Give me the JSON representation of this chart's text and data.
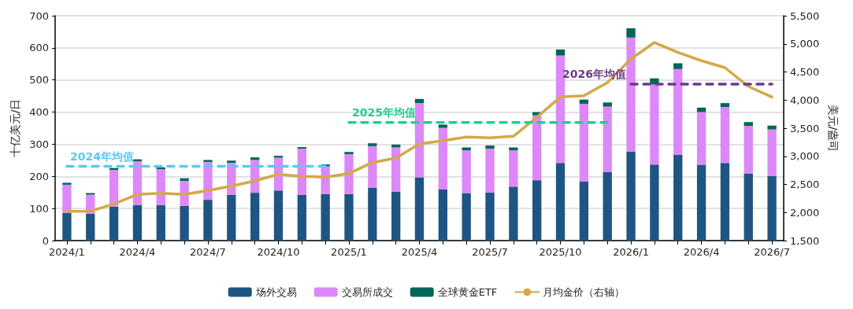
{
  "chart_data": {
    "type": "bar",
    "stacked": true,
    "ylabel": "十亿美元/日",
    "y2label": "美元/盎司",
    "categories": [
      "2024/1",
      null,
      null,
      "2024/4",
      null,
      null,
      "2024/7",
      null,
      null,
      "2024/10",
      null,
      null,
      "2025/1",
      null,
      null,
      "2025/4",
      null,
      null,
      "2025/7",
      null,
      null,
      "2025/10",
      null,
      null,
      "2026/1",
      null,
      null,
      "2026/4",
      null,
      null,
      "2026/7"
    ],
    "ylim": [
      0,
      700
    ],
    "yticks": [
      0,
      100,
      200,
      300,
      400,
      500,
      600,
      700
    ],
    "y2lim": [
      1500,
      5500
    ],
    "y2ticks": [
      {
        "value": 1500,
        "label": "1,500"
      },
      {
        "value": 2000,
        "label": "2,000"
      },
      {
        "value": 2500,
        "label": "2,500"
      },
      {
        "value": 3000,
        "label": "3,000"
      },
      {
        "value": 3500,
        "label": "3,500"
      },
      {
        "value": 4000,
        "label": "4,000"
      },
      {
        "value": 4500,
        "label": "4,500"
      },
      {
        "value": 5000,
        "label": "5,000"
      },
      {
        "value": 5500,
        "label": "5,500"
      }
    ],
    "grid": "y",
    "legend": "bottom",
    "series": [
      {
        "name": "场外交易",
        "color": "#1f5582",
        "values": [
          86,
          84,
          106,
          111,
          111,
          108,
          127,
          143,
          149,
          156,
          143,
          145,
          145,
          165,
          152,
          197,
          159,
          148,
          150,
          168,
          188,
          242,
          184,
          213,
          277,
          237,
          267,
          236,
          242,
          209,
          201
        ]
      },
      {
        "name": "交易所成交",
        "color": "#dd88f8",
        "values": [
          88,
          59,
          114,
          136,
          111,
          78,
          118,
          99,
          102,
          102,
          143,
          86,
          124,
          129,
          138,
          231,
          192,
          133,
          136,
          113,
          202,
          334,
          242,
          204,
          355,
          249,
          267,
          164,
          174,
          148,
          145
        ]
      },
      {
        "name": "全球黄金ETF",
        "color": "#006655",
        "values": [
          6,
          5,
          6,
          6,
          6,
          8,
          6,
          7,
          8,
          6,
          5,
          6,
          7,
          9,
          9,
          13,
          10,
          9,
          10,
          9,
          10,
          19,
          13,
          13,
          29,
          19,
          18,
          14,
          12,
          12,
          12
        ]
      },
      {
        "name": "月均金价（右轴）",
        "type": "line",
        "axis": "y2",
        "color": "#d4a84b",
        "marker": "none",
        "values": [
          2022,
          2022,
          2153,
          2321,
          2343,
          2321,
          2391,
          2469,
          2563,
          2679,
          2643,
          2629,
          2693,
          2889,
          2969,
          3220,
          3276,
          3342,
          3328,
          3356,
          3696,
          4055,
          4078,
          4311,
          4731,
          5024,
          4847,
          4699,
          4577,
          4241,
          4055
        ]
      },
      {
        "name": "2024年均值",
        "type": "line",
        "color": "#5bc8f5",
        "line_style": "dashed",
        "marker": "none",
        "values": [
          231,
          231,
          231,
          231,
          231,
          231,
          231,
          231,
          231,
          231,
          231,
          231,
          null,
          null,
          null,
          null,
          null,
          null,
          null,
          null,
          null,
          null,
          null,
          null,
          null,
          null,
          null,
          null,
          null,
          null,
          null
        ]
      },
      {
        "name": "2025年均值",
        "type": "line",
        "color": "#1fcf8f",
        "line_style": "dashed",
        "marker": "none",
        "values": [
          null,
          null,
          null,
          null,
          null,
          null,
          null,
          null,
          null,
          null,
          null,
          null,
          368,
          368,
          368,
          368,
          368,
          368,
          368,
          368,
          368,
          368,
          368,
          368,
          null,
          null,
          null,
          null,
          null,
          null,
          null
        ]
      },
      {
        "name": "2026年均值",
        "type": "line",
        "color": "#6b3a8a",
        "line_style": "dashed",
        "marker": "none",
        "values": [
          null,
          null,
          null,
          null,
          null,
          null,
          null,
          null,
          null,
          null,
          null,
          null,
          null,
          null,
          null,
          null,
          null,
          null,
          null,
          null,
          null,
          null,
          null,
          null,
          487,
          487,
          487,
          487,
          487,
          487,
          487
        ]
      }
    ]
  }
}
